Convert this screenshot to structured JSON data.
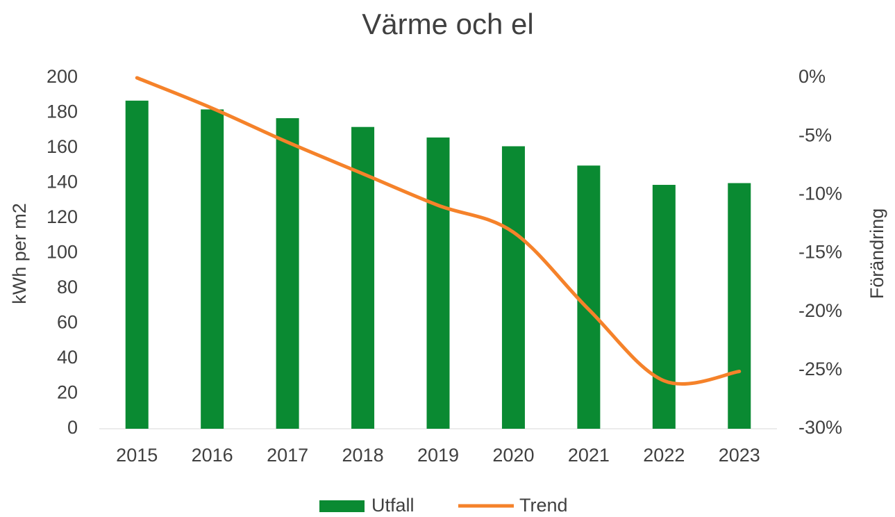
{
  "chart_data": {
    "type": "bar_line",
    "title": "Värme och el",
    "y_label": "kWh per m2",
    "y2_label": "Förändring",
    "categories": [
      "2015",
      "2016",
      "2017",
      "2018",
      "2019",
      "2020",
      "2021",
      "2022",
      "2023"
    ],
    "series": [
      {
        "name": "Utfall",
        "color": "#0a8a32",
        "values": [
          187,
          182,
          177,
          172,
          166,
          161,
          150,
          139,
          140
        ]
      },
      {
        "name": "Trend",
        "color": "#f5822a",
        "axis": "y2",
        "values": [
          0,
          -2.6,
          -5.5,
          -8.2,
          -10.9,
          -13.2,
          -19.8,
          -25.9,
          -25.1
        ]
      }
    ],
    "ylim": [
      0,
      200
    ],
    "yticks": [
      0,
      20,
      40,
      60,
      80,
      100,
      120,
      140,
      160,
      180,
      200
    ],
    "y2lim": [
      -30,
      0
    ],
    "y2ticks": [
      {
        "value": -30,
        "label": "-30%"
      },
      {
        "value": -25,
        "label": "-25%"
      },
      {
        "value": -20,
        "label": "-20%"
      },
      {
        "value": -15,
        "label": "-15%"
      },
      {
        "value": -10,
        "label": "-10%"
      },
      {
        "value": -5,
        "label": "-5%"
      },
      {
        "value": 0,
        "label": "0%"
      }
    ],
    "legend": "bottom"
  }
}
